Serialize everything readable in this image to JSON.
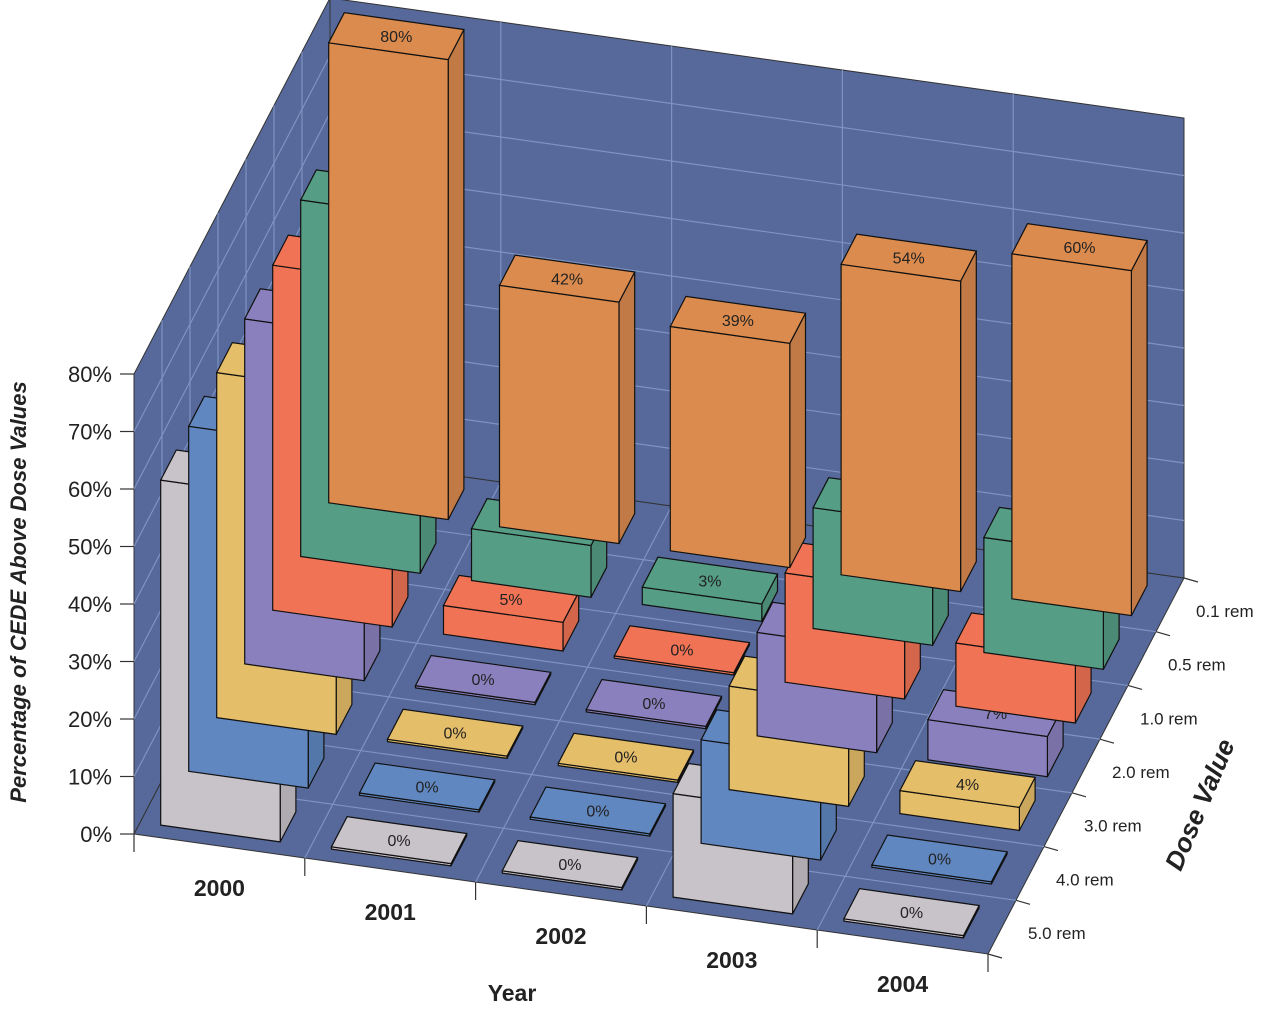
{
  "chart_data": {
    "type": "bar",
    "ylabel": "Percentage of CEDE Above Dose Values",
    "xlabel": "Year",
    "zlabel": "Dose Value",
    "ylim": [
      0,
      80
    ],
    "y_ticks": [
      "0%",
      "10%",
      "20%",
      "30%",
      "40%",
      "50%",
      "60%",
      "70%",
      "80%"
    ],
    "categories": [
      "2000",
      "2001",
      "2002",
      "2003",
      "2004"
    ],
    "series": [
      {
        "name": "0.1 rem",
        "color": "#DB8B4E",
        "values": [
          80,
          42,
          39,
          54,
          60
        ]
      },
      {
        "name": "0.5 rem",
        "color": "#559D84",
        "values": [
          62,
          9,
          3,
          21,
          20
        ]
      },
      {
        "name": "1.0 rem",
        "color": "#F07355",
        "values": [
          60,
          5,
          0,
          19,
          11
        ]
      },
      {
        "name": "2.0 rem",
        "color": "#8B80BE",
        "values": [
          60,
          0,
          0,
          18,
          7
        ]
      },
      {
        "name": "3.0 rem",
        "color": "#E5BE6A",
        "values": [
          60,
          0,
          0,
          18,
          4
        ]
      },
      {
        "name": "4.0 rem",
        "color": "#6087C0",
        "values": [
          60,
          0,
          0,
          18,
          0
        ]
      },
      {
        "name": "5.0 rem",
        "color": "#C8C2C9",
        "values": [
          60,
          0,
          0,
          18,
          0
        ]
      }
    ],
    "value_format": "{v}%",
    "grid": true,
    "background_color": "#56699A",
    "grid_color": "#7E93C2"
  }
}
